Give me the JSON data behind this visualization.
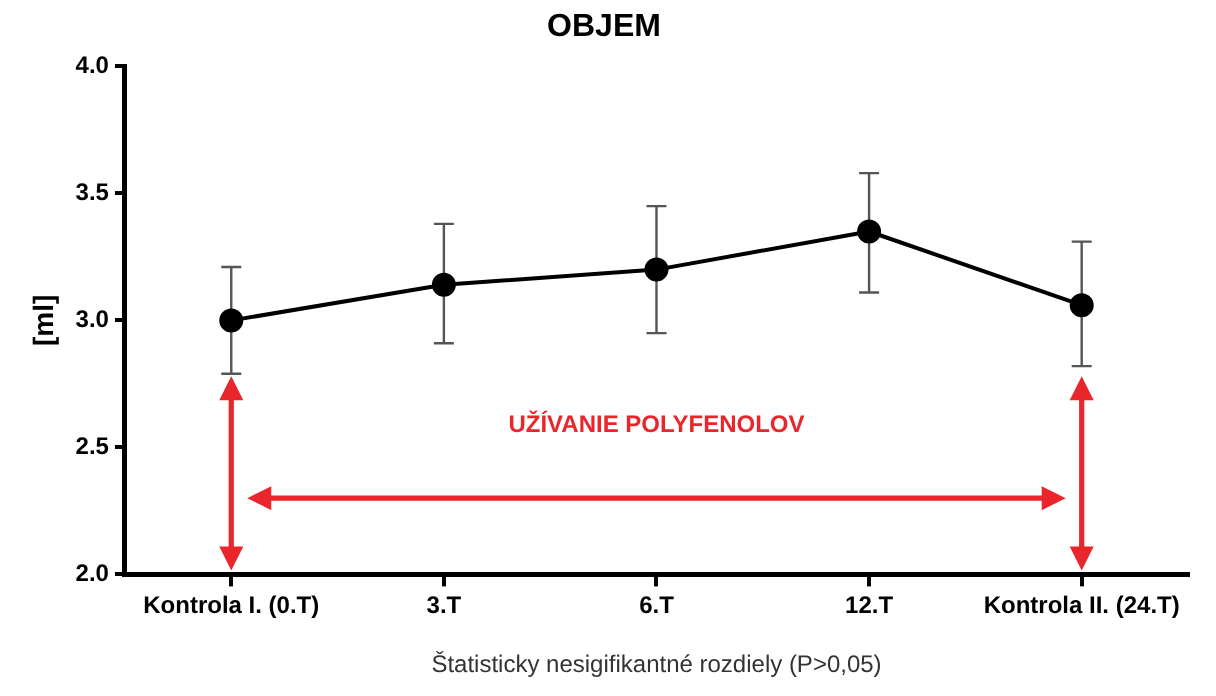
{
  "chart_data": {
    "type": "line",
    "title": "OBJEM",
    "xlabel": "Štatisticky nesigifikantné rozdiely (P>0,05)",
    "ylabel": "[ml]",
    "categories": [
      "Kontrola I. (0.T)",
      "3.T",
      "6.T",
      "12.T",
      "Kontrola II. (24.T)"
    ],
    "series": [
      {
        "color": "#000000",
        "values": [
          3.0,
          3.14,
          3.2,
          3.35,
          3.06
        ],
        "errors": [
          [
            2.79,
            3.21
          ],
          [
            2.91,
            3.38
          ],
          [
            2.95,
            3.45
          ],
          [
            3.11,
            3.58
          ],
          [
            2.82,
            3.31
          ]
        ]
      }
    ],
    "ylim": [
      2.0,
      4.0
    ],
    "yticks": [
      {
        "value": 2,
        "label": "2.0"
      },
      {
        "value": 2.5,
        "label": "2.5"
      },
      {
        "value": 3,
        "label": "3.0"
      },
      {
        "value": 3.5,
        "label": "3.5"
      },
      {
        "value": 4,
        "label": "4.0"
      }
    ],
    "annotations": [
      "UŽÍVANIE POLYFENOLOV"
    ],
    "grid": false,
    "legend": false,
    "marker": "circle",
    "line_style": "solid"
  }
}
